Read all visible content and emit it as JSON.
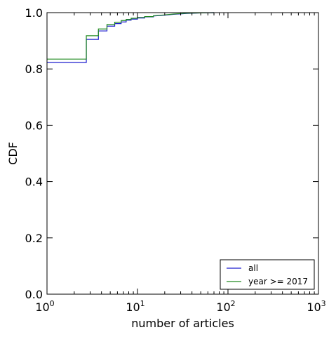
{
  "chart_data": {
    "type": "line",
    "step": true,
    "xlabel": "number of articles",
    "ylabel": "CDF",
    "xscale": "log",
    "xlim": [
      1,
      1000
    ],
    "ylim": [
      0.0,
      1.0
    ],
    "grid": false,
    "legend_position": "lower-right",
    "x_ticks": [
      {
        "value": 1,
        "base": "10",
        "exp": "0"
      },
      {
        "value": 10,
        "base": "10",
        "exp": "1"
      },
      {
        "value": 100,
        "base": "10",
        "exp": "2"
      },
      {
        "value": 1000,
        "base": "10",
        "exp": "3"
      }
    ],
    "y_ticks": [
      {
        "value": 0.0,
        "label": "0.0"
      },
      {
        "value": 0.2,
        "label": "0.2"
      },
      {
        "value": 0.4,
        "label": "0.4"
      },
      {
        "value": 0.6,
        "label": "0.6"
      },
      {
        "value": 0.8,
        "label": "0.8"
      },
      {
        "value": 1.0,
        "label": "1.0"
      }
    ],
    "series": [
      {
        "name": "all",
        "color": "#1f1fcf",
        "points": [
          [
            1,
            0.823
          ],
          [
            2.72,
            0.823
          ],
          [
            2.72,
            0.905
          ],
          [
            3.7,
            0.905
          ],
          [
            3.7,
            0.935
          ],
          [
            4.6,
            0.935
          ],
          [
            4.6,
            0.952
          ],
          [
            5.6,
            0.952
          ],
          [
            5.6,
            0.961
          ],
          [
            6.6,
            0.961
          ],
          [
            6.6,
            0.967
          ],
          [
            7.5,
            0.967
          ],
          [
            7.5,
            0.973
          ],
          [
            8.5,
            0.973
          ],
          [
            8.5,
            0.977
          ],
          [
            10,
            0.977
          ],
          [
            10,
            0.981
          ],
          [
            12,
            0.981
          ],
          [
            12,
            0.985
          ],
          [
            15,
            0.985
          ],
          [
            15,
            0.988
          ],
          [
            20,
            0.991
          ],
          [
            25,
            0.994
          ],
          [
            35,
            0.997
          ],
          [
            50,
            0.999
          ],
          [
            70,
            1.0
          ]
        ]
      },
      {
        "name": "year >= 2017",
        "color": "#228b22",
        "points": [
          [
            1,
            0.835
          ],
          [
            2.72,
            0.835
          ],
          [
            2.72,
            0.918
          ],
          [
            3.7,
            0.918
          ],
          [
            3.7,
            0.942
          ],
          [
            4.6,
            0.942
          ],
          [
            4.6,
            0.958
          ],
          [
            5.6,
            0.958
          ],
          [
            5.6,
            0.966
          ],
          [
            6.6,
            0.966
          ],
          [
            6.6,
            0.972
          ],
          [
            7.5,
            0.972
          ],
          [
            7.5,
            0.976
          ],
          [
            8.5,
            0.976
          ],
          [
            8.5,
            0.98
          ],
          [
            10,
            0.98
          ],
          [
            10,
            0.983
          ],
          [
            12,
            0.983
          ],
          [
            12,
            0.986
          ],
          [
            15,
            0.986
          ],
          [
            15,
            0.989
          ],
          [
            20,
            0.992
          ],
          [
            25,
            0.995
          ],
          [
            35,
            0.998
          ],
          [
            50,
            0.999
          ],
          [
            70,
            1.0
          ]
        ]
      }
    ]
  }
}
